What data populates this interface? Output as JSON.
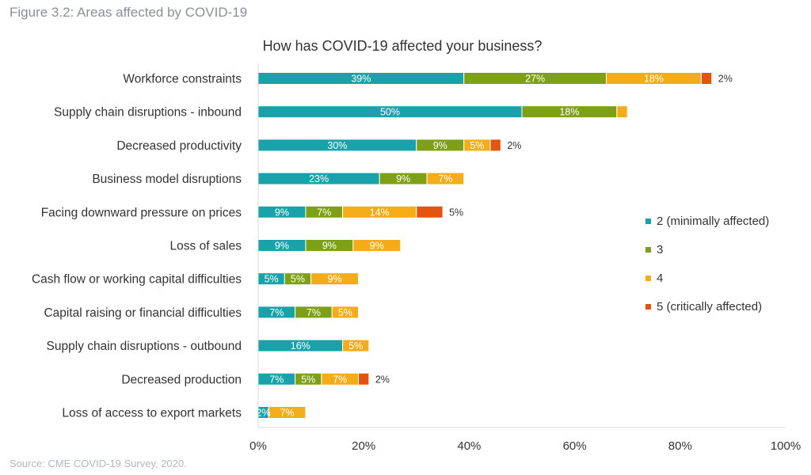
{
  "figure_caption": "Figure 3.2: Areas affected by COVID-19",
  "source": "Source: CME COVID-19 Survey, 2020.",
  "colors": {
    "s2": "#1aa2ab",
    "s3": "#7ea017",
    "s4": "#f5ac19",
    "s5": "#e4530f",
    "grid": "#d9d9d9",
    "text": "#333333"
  },
  "chart_data": {
    "type": "bar",
    "orientation": "horizontal",
    "stacked": true,
    "title": "How has COVID-19 affected your business?",
    "categories": [
      "Workforce constraints",
      "Supply chain disruptions - inbound",
      "Decreased productivity",
      "Business model disruptions",
      "Facing downward pressure on prices",
      "Loss of sales",
      "Cash flow or working capital difficulties",
      "Capital raising or financial difficulties",
      "Supply chain disruptions - outbound",
      "Decreased production",
      "Loss of access to export markets"
    ],
    "series": [
      {
        "name": "2 (minimally affected)",
        "color": "#1aa2ab",
        "values": [
          39,
          50,
          30,
          23,
          9,
          9,
          5,
          7,
          16,
          7,
          2
        ],
        "labels": [
          "39%",
          "50%",
          "30%",
          "23%",
          "9%",
          "9%",
          "5%",
          "7%",
          "16%",
          "7%",
          "2%"
        ]
      },
      {
        "name": "3",
        "color": "#7ea017",
        "values": [
          27,
          18,
          9,
          9,
          7,
          9,
          5,
          7,
          0,
          5,
          0
        ],
        "labels": [
          "27%",
          "18%",
          "9%",
          "9%",
          "7%",
          "9%",
          "5%",
          "7%",
          "",
          "5%",
          ""
        ]
      },
      {
        "name": "4",
        "color": "#f5ac19",
        "values": [
          18,
          2,
          5,
          7,
          14,
          9,
          9,
          5,
          5,
          7,
          7
        ],
        "labels": [
          "18%",
          "",
          "5%",
          "7%",
          "14%",
          "9%",
          "9%",
          "5%",
          "5%",
          "7%",
          "7%"
        ]
      },
      {
        "name": "5 (critically affected)",
        "color": "#e4530f",
        "values": [
          2,
          0,
          2,
          0,
          5,
          0,
          0,
          0,
          0,
          2,
          0
        ],
        "labels": [
          "2%",
          "",
          "2%",
          "",
          "5%",
          "",
          "",
          "",
          "",
          "2%",
          ""
        ]
      }
    ],
    "xlim": [
      0,
      100
    ],
    "xticks": [
      "0%",
      "20%",
      "40%",
      "60%",
      "80%",
      "100%"
    ],
    "legend_position": "right",
    "grid": false
  }
}
